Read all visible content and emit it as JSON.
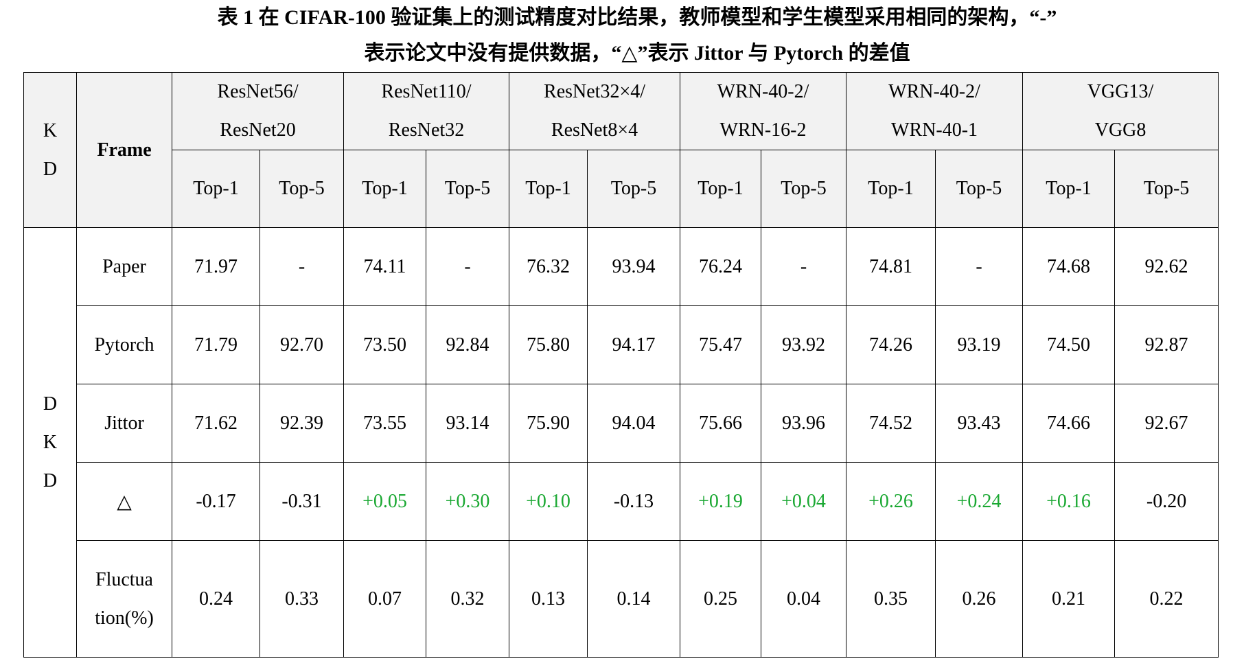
{
  "caption": {
    "line1": "表 1 在 CIFAR-100 验证集上的测试精度对比结果，教师模型和学生模型采用相同的架构，“-”",
    "line2": "表示论文中没有提供数据，“△”表示 Jittor 与 Pytorch 的差值"
  },
  "header": {
    "kd_line1": "K",
    "kd_line2": "D",
    "frame": "Frame",
    "models": [
      {
        "line1": "ResNet56/",
        "line2": "ResNet20"
      },
      {
        "line1": "ResNet110/",
        "line2": "ResNet32"
      },
      {
        "line1": "ResNet32×4/",
        "line2": "ResNet8×4"
      },
      {
        "line1": "WRN-40-2/",
        "line2": "WRN-16-2"
      },
      {
        "line1": "WRN-40-2/",
        "line2": "WRN-40-1"
      },
      {
        "line1": "VGG13/",
        "line2": "VGG8"
      }
    ],
    "top1": "Top-1",
    "top5": "Top-5"
  },
  "method": {
    "line1": "D",
    "line2": "K",
    "line3": "D"
  },
  "rows": [
    {
      "frame": "Paper",
      "values": [
        "71.97",
        "-",
        "74.11",
        "-",
        "76.32",
        "93.94",
        "76.24",
        "-",
        "74.81",
        "-",
        "74.68",
        "92.62"
      ]
    },
    {
      "frame": "Pytorch",
      "values": [
        "71.79",
        "92.70",
        "73.50",
        "92.84",
        "75.80",
        "94.17",
        "75.47",
        "93.92",
        "74.26",
        "93.19",
        "74.50",
        "92.87"
      ]
    },
    {
      "frame": "Jittor",
      "values": [
        "71.62",
        "92.39",
        "73.55",
        "93.14",
        "75.90",
        "94.04",
        "75.66",
        "93.96",
        "74.52",
        "93.43",
        "74.66",
        "92.67"
      ]
    },
    {
      "frame": "△",
      "values": [
        "-0.17",
        "-0.31",
        "+0.05",
        "+0.30",
        "+0.10",
        "-0.13",
        "+0.19",
        "+0.04",
        "+0.26",
        "+0.24",
        "+0.16",
        "-0.20"
      ]
    }
  ],
  "fluctuation": {
    "frame_line1": "Fluctua",
    "frame_line2": "tion(%)",
    "values": [
      "0.24",
      "0.33",
      "0.07",
      "0.32",
      "0.13",
      "0.14",
      "0.25",
      "0.04",
      "0.35",
      "0.26",
      "0.21",
      "0.22"
    ]
  },
  "colors": {
    "positive_delta": "#1aa832",
    "header_bg": "#f2f2f2"
  }
}
